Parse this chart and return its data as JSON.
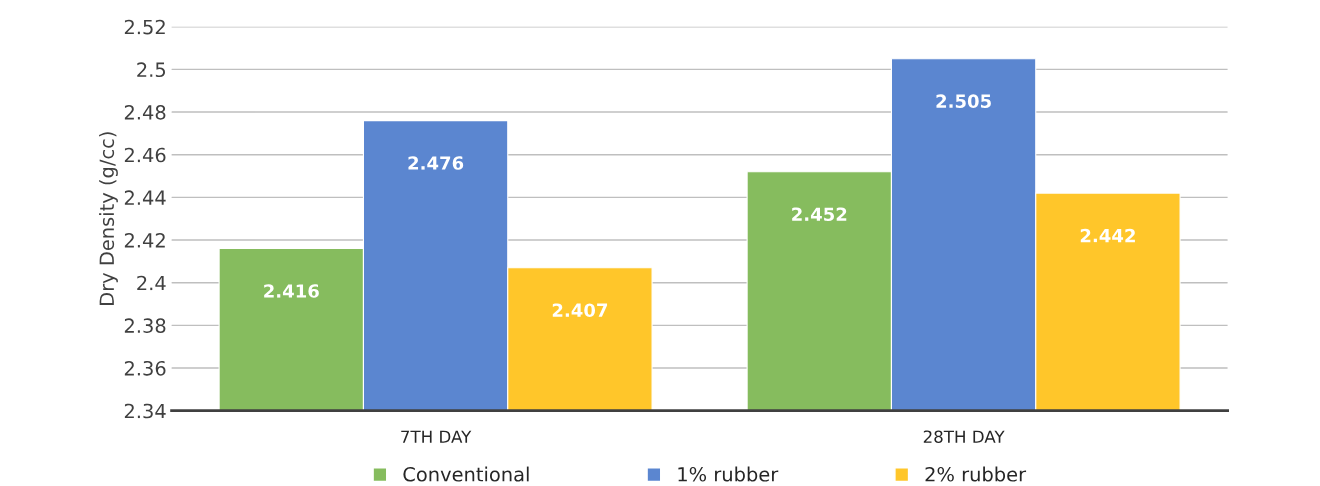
{
  "chart_data": {
    "type": "bar",
    "ylabel": "Dry Density (g/cc)",
    "categories": [
      "7TH DAY",
      "28TH DAY"
    ],
    "series": [
      {
        "name": "Conventional",
        "color": "#86bc5e",
        "values": [
          2.416,
          2.452
        ]
      },
      {
        "name": "1% rubber",
        "color": "#5b86d0",
        "values": [
          2.476,
          2.505
        ]
      },
      {
        "name": "2% rubber",
        "color": "#ffc62a",
        "values": [
          2.407,
          2.442
        ]
      }
    ],
    "ylim": [
      2.34,
      2.52
    ],
    "yticks": [
      2.34,
      2.36,
      2.38,
      2.4,
      2.42,
      2.44,
      2.46,
      2.48,
      2.5,
      2.52
    ],
    "grid": "y",
    "legend": "bottom",
    "data_labels": true
  }
}
